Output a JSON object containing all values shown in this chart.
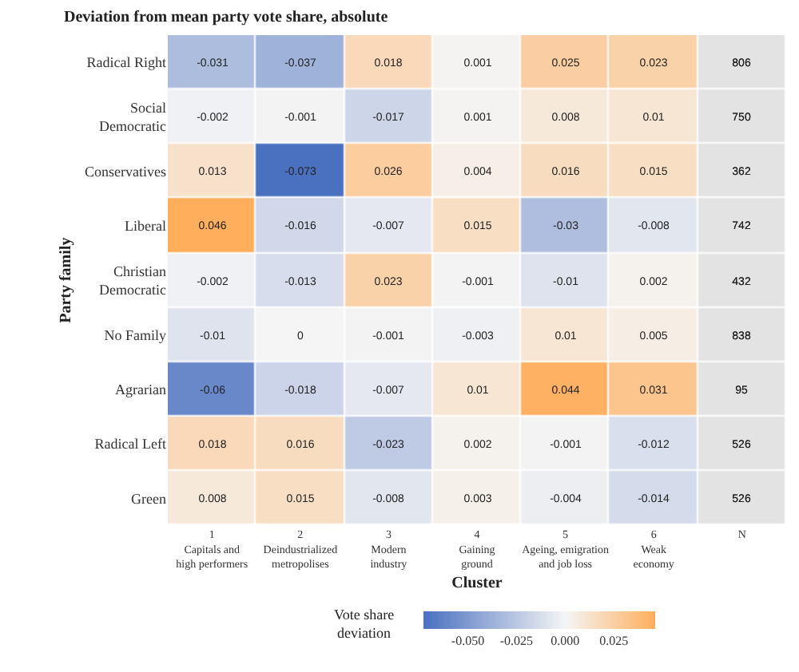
{
  "chart_data": {
    "type": "heatmap",
    "title": "Deviation from mean party vote share, absolute",
    "xlabel": "Cluster",
    "ylabel": "Party family",
    "clabel": "Vote share\ndeviation",
    "categories": [
      "1\nCapitals and\nhigh performers",
      "2\nDeindustrialized\nmetropolises",
      "3\nModern\nindustry",
      "4\nGaining\nground",
      "5\nAgeing, emigration\nand job loss",
      "6\nWeak\neconomy",
      "N"
    ],
    "y_categories": [
      "Radical Right",
      "Social\nDemocratic",
      "Conservatives",
      "Liberal",
      "Christian\nDemocratic",
      "No Family",
      "Agrarian",
      "Radical Left",
      "Green"
    ],
    "cells": [
      [
        -0.031,
        -0.037,
        0.018,
        0.001,
        0.025,
        0.023,
        null
      ],
      [
        -0.002,
        -0.001,
        -0.017,
        0.001,
        0.008,
        0.01,
        null
      ],
      [
        0.013,
        -0.073,
        0.026,
        0.004,
        0.016,
        0.015,
        null
      ],
      [
        0.046,
        -0.016,
        -0.007,
        0.015,
        -0.03,
        -0.008,
        null
      ],
      [
        -0.002,
        -0.013,
        0.023,
        -0.001,
        -0.01,
        0.002,
        null
      ],
      [
        -0.01,
        0,
        -0.001,
        -0.003,
        0.01,
        0.005,
        null
      ],
      [
        -0.06,
        -0.018,
        -0.007,
        0.01,
        0.044,
        0.031,
        null
      ],
      [
        0.018,
        0.016,
        -0.023,
        0.002,
        -0.001,
        -0.012,
        null
      ],
      [
        0.008,
        0.015,
        -0.008,
        0.003,
        -0.004,
        -0.014,
        null
      ]
    ],
    "cell_labels": [
      [
        "-0.031",
        "-0.037",
        "0.018",
        "0.001",
        "0.025",
        "0.023",
        "806"
      ],
      [
        "-0.002",
        "-0.001",
        "-0.017",
        "0.001",
        "0.008",
        "0.01",
        "750"
      ],
      [
        "0.013",
        "-0.073",
        "0.026",
        "0.004",
        "0.016",
        "0.015",
        "362"
      ],
      [
        "0.046",
        "-0.016",
        "-0.007",
        "0.015",
        "-0.03",
        "-0.008",
        "742"
      ],
      [
        "-0.002",
        "-0.013",
        "0.023",
        "-0.001",
        "-0.01",
        "0.002",
        "432"
      ],
      [
        "-0.01",
        "0",
        "-0.001",
        "-0.003",
        "0.01",
        "0.005",
        "838"
      ],
      [
        "-0.06",
        "-0.018",
        "-0.007",
        "0.01",
        "0.044",
        "0.031",
        "95"
      ],
      [
        "0.018",
        "0.016",
        "-0.023",
        "0.002",
        "-0.001",
        "-0.012",
        "526"
      ],
      [
        "0.008",
        "0.015",
        "-0.008",
        "0.003",
        "-0.004",
        "-0.014",
        "526"
      ]
    ],
    "clim": [
      -0.073,
      0.046
    ],
    "cticks": [
      {
        "value": -0.05,
        "label": "-0.050"
      },
      {
        "value": -0.025,
        "label": "-0.025"
      },
      {
        "value": 0,
        "label": "0.000"
      },
      {
        "value": 0.025,
        "label": "0.025"
      }
    ]
  }
}
